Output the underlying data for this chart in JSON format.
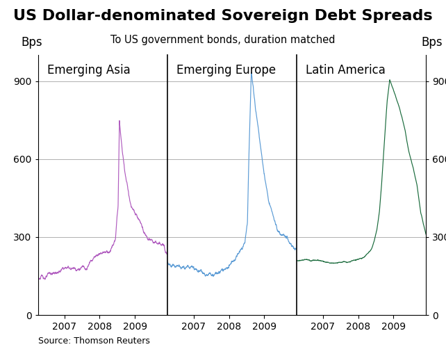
{
  "title": "US Dollar-denominated Sovereign Debt Spreads",
  "subtitle": "To US government bonds, duration matched",
  "source": "Source: Thomson Reuters",
  "panel_labels": [
    "Emerging Asia",
    "Emerging Europe",
    "Latin America"
  ],
  "ylabel": "Bps",
  "ylim": [
    0,
    1000
  ],
  "yticks": [
    0,
    300,
    600,
    900
  ],
  "colors": [
    "#b05cbf",
    "#5b9bd5",
    "#1a6b3c"
  ],
  "background_color": "#ffffff",
  "grid_color": "#b0b0b0",
  "title_fontsize": 16,
  "subtitle_fontsize": 10.5,
  "label_fontsize": 12,
  "tick_fontsize": 10,
  "source_fontsize": 9,
  "start_year": 2006.25,
  "end_year": 2009.92,
  "tick_years": [
    2007,
    2008,
    2009
  ]
}
